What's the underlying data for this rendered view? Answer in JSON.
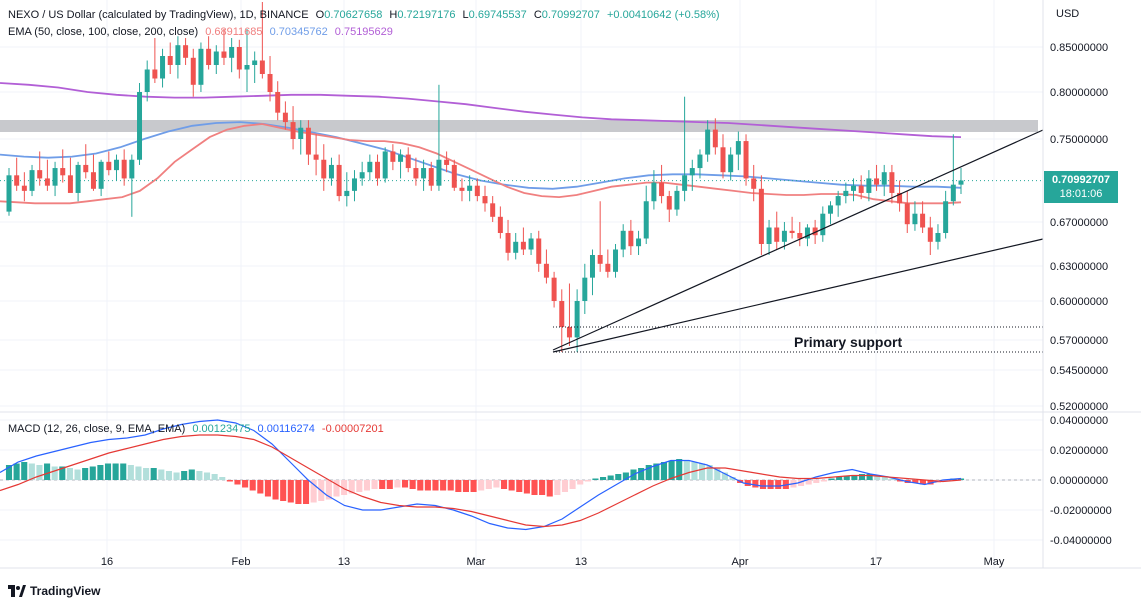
{
  "header": {
    "symbol": "NEXO / US Dollar (calculated by TradingView), 1D, BINANCE",
    "o_label": "O",
    "o_value": "0.70627658",
    "h_label": "H",
    "h_value": "0.72197176",
    "l_label": "L",
    "l_value": "0.69745537",
    "c_label": "C",
    "c_value": "0.70992707",
    "change": "+0.00410642 (+0.58%)",
    "ema_label": "EMA (50, close, 100, close, 200, close)",
    "ema50": "0.68911685",
    "ema100": "0.70345762",
    "ema200": "0.75195629",
    "macd_label": "MACD (12, 26, close, 9, EMA, EMA)",
    "macd_hist": "0.00123475",
    "macd_line": "0.00116274",
    "macd_signal": "-0.00007201"
  },
  "currency": "USD",
  "price_tag": {
    "price": "0.70992707",
    "countdown": "18:01:06"
  },
  "annotation": "Primary support",
  "brand": "TradingView",
  "colors": {
    "up": "#26a69a",
    "down": "#ef5350",
    "ema50": "#f08080",
    "ema100": "#6f9de8",
    "ema200": "#b25fd6",
    "macd": "#2962ff",
    "signal": "#e53935"
  },
  "chart_data": {
    "type": "candlestick",
    "title": "NEXO / US Dollar (calculated by TradingView), 1D, BINANCE",
    "price_ticks": [
      "0.85000000",
      "0.80000000",
      "0.75000000",
      "0.67000000",
      "0.63000000",
      "0.60000000",
      "0.57000000",
      "0.54500000",
      "0.52000000"
    ],
    "macd_ticks": [
      "0.04000000",
      "0.02000000",
      "0.00000000",
      "-0.02000000",
      "-0.04000000"
    ],
    "x_ticks": [
      "16",
      "Feb",
      "13",
      "Mar",
      "13",
      "Apr",
      "17",
      "May"
    ],
    "resistance_zone": [
      0.755,
      0.765
    ],
    "support_levels": [
      0.582,
      0.563
    ],
    "candles": [
      [
        0.68,
        0.722,
        0.676,
        0.715
      ],
      [
        0.715,
        0.732,
        0.7,
        0.705
      ],
      [
        0.705,
        0.718,
        0.69,
        0.7
      ],
      [
        0.7,
        0.725,
        0.695,
        0.72
      ],
      [
        0.72,
        0.738,
        0.705,
        0.712
      ],
      [
        0.712,
        0.73,
        0.7,
        0.705
      ],
      [
        0.705,
        0.728,
        0.695,
        0.722
      ],
      [
        0.722,
        0.74,
        0.708,
        0.715
      ],
      [
        0.715,
        0.732,
        0.7,
        0.698
      ],
      [
        0.698,
        0.728,
        0.69,
        0.725
      ],
      [
        0.725,
        0.745,
        0.712,
        0.718
      ],
      [
        0.718,
        0.735,
        0.7,
        0.702
      ],
      [
        0.702,
        0.73,
        0.695,
        0.728
      ],
      [
        0.728,
        0.738,
        0.715,
        0.72
      ],
      [
        0.72,
        0.735,
        0.71,
        0.73
      ],
      [
        0.73,
        0.74,
        0.705,
        0.712
      ],
      [
        0.712,
        0.735,
        0.675,
        0.73
      ],
      [
        0.73,
        0.81,
        0.725,
        0.8
      ],
      [
        0.8,
        0.835,
        0.79,
        0.825
      ],
      [
        0.825,
        0.86,
        0.81,
        0.815
      ],
      [
        0.815,
        0.848,
        0.805,
        0.84
      ],
      [
        0.84,
        0.855,
        0.82,
        0.83
      ],
      [
        0.83,
        0.862,
        0.815,
        0.852
      ],
      [
        0.852,
        0.86,
        0.83,
        0.838
      ],
      [
        0.838,
        0.848,
        0.795,
        0.808
      ],
      [
        0.808,
        0.855,
        0.8,
        0.848
      ],
      [
        0.848,
        0.862,
        0.825,
        0.83
      ],
      [
        0.83,
        0.852,
        0.82,
        0.845
      ],
      [
        0.845,
        0.87,
        0.83,
        0.838
      ],
      [
        0.838,
        0.86,
        0.822,
        0.85
      ],
      [
        0.85,
        0.858,
        0.815,
        0.825
      ],
      [
        0.825,
        0.87,
        0.8,
        0.83
      ],
      [
        0.83,
        0.845,
        0.81,
        0.835
      ],
      [
        0.835,
        0.9,
        0.815,
        0.82
      ],
      [
        0.82,
        0.84,
        0.79,
        0.8
      ],
      [
        0.8,
        0.812,
        0.77,
        0.778
      ],
      [
        0.778,
        0.79,
        0.76,
        0.768
      ],
      [
        0.768,
        0.785,
        0.74,
        0.75
      ],
      [
        0.75,
        0.77,
        0.735,
        0.762
      ],
      [
        0.762,
        0.77,
        0.725,
        0.735
      ],
      [
        0.735,
        0.755,
        0.715,
        0.73
      ],
      [
        0.73,
        0.745,
        0.7,
        0.712
      ],
      [
        0.712,
        0.732,
        0.705,
        0.725
      ],
      [
        0.725,
        0.735,
        0.69,
        0.695
      ],
      [
        0.695,
        0.718,
        0.685,
        0.7
      ],
      [
        0.7,
        0.72,
        0.69,
        0.712
      ],
      [
        0.712,
        0.728,
        0.705,
        0.718
      ],
      [
        0.718,
        0.735,
        0.71,
        0.728
      ],
      [
        0.728,
        0.735,
        0.705,
        0.712
      ],
      [
        0.712,
        0.742,
        0.708,
        0.738
      ],
      [
        0.738,
        0.745,
        0.72,
        0.728
      ],
      [
        0.728,
        0.74,
        0.712,
        0.735
      ],
      [
        0.735,
        0.742,
        0.718,
        0.722
      ],
      [
        0.722,
        0.732,
        0.705,
        0.712
      ],
      [
        0.712,
        0.73,
        0.7,
        0.722
      ],
      [
        0.722,
        0.728,
        0.7,
        0.705
      ],
      [
        0.705,
        0.808,
        0.7,
        0.73
      ],
      [
        0.73,
        0.738,
        0.718,
        0.725
      ],
      [
        0.725,
        0.73,
        0.7,
        0.703
      ],
      [
        0.703,
        0.712,
        0.69,
        0.7
      ],
      [
        0.7,
        0.715,
        0.69,
        0.705
      ],
      [
        0.705,
        0.712,
        0.69,
        0.695
      ],
      [
        0.695,
        0.705,
        0.68,
        0.688
      ],
      [
        0.688,
        0.695,
        0.67,
        0.675
      ],
      [
        0.675,
        0.685,
        0.655,
        0.66
      ],
      [
        0.66,
        0.672,
        0.635,
        0.642
      ],
      [
        0.642,
        0.66,
        0.636,
        0.652
      ],
      [
        0.652,
        0.665,
        0.64,
        0.645
      ],
      [
        0.645,
        0.66,
        0.64,
        0.655
      ],
      [
        0.655,
        0.662,
        0.625,
        0.632
      ],
      [
        0.632,
        0.645,
        0.615,
        0.62
      ],
      [
        0.62,
        0.625,
        0.595,
        0.6
      ],
      [
        0.6,
        0.61,
        0.56,
        0.58
      ],
      [
        0.58,
        0.615,
        0.565,
        0.572
      ],
      [
        0.572,
        0.61,
        0.56,
        0.6
      ],
      [
        0.6,
        0.632,
        0.59,
        0.62
      ],
      [
        0.62,
        0.645,
        0.605,
        0.64
      ],
      [
        0.64,
        0.69,
        0.625,
        0.632
      ],
      [
        0.632,
        0.645,
        0.62,
        0.625
      ],
      [
        0.625,
        0.65,
        0.62,
        0.645
      ],
      [
        0.645,
        0.668,
        0.638,
        0.662
      ],
      [
        0.662,
        0.672,
        0.64,
        0.648
      ],
      [
        0.648,
        0.662,
        0.64,
        0.655
      ],
      [
        0.655,
        0.705,
        0.65,
        0.69
      ],
      [
        0.69,
        0.72,
        0.682,
        0.708
      ],
      [
        0.708,
        0.725,
        0.688,
        0.695
      ],
      [
        0.695,
        0.7,
        0.67,
        0.682
      ],
      [
        0.682,
        0.705,
        0.676,
        0.7
      ],
      [
        0.7,
        0.795,
        0.69,
        0.715
      ],
      [
        0.715,
        0.73,
        0.7,
        0.722
      ],
      [
        0.722,
        0.74,
        0.712,
        0.735
      ],
      [
        0.735,
        0.77,
        0.728,
        0.76
      ],
      [
        0.76,
        0.772,
        0.735,
        0.742
      ],
      [
        0.742,
        0.755,
        0.712,
        0.718
      ],
      [
        0.718,
        0.742,
        0.71,
        0.735
      ],
      [
        0.735,
        0.758,
        0.72,
        0.748
      ],
      [
        0.748,
        0.755,
        0.705,
        0.712
      ],
      [
        0.712,
        0.725,
        0.69,
        0.702
      ],
      [
        0.702,
        0.715,
        0.64,
        0.65
      ],
      [
        0.65,
        0.672,
        0.64,
        0.665
      ],
      [
        0.665,
        0.68,
        0.645,
        0.652
      ],
      [
        0.652,
        0.67,
        0.645,
        0.662
      ],
      [
        0.662,
        0.675,
        0.655,
        0.66
      ],
      [
        0.66,
        0.67,
        0.648,
        0.655
      ],
      [
        0.655,
        0.668,
        0.648,
        0.665
      ],
      [
        0.665,
        0.672,
        0.65,
        0.658
      ],
      [
        0.658,
        0.685,
        0.652,
        0.678
      ],
      [
        0.678,
        0.69,
        0.668,
        0.686
      ],
      [
        0.686,
        0.7,
        0.675,
        0.695
      ],
      [
        0.695,
        0.708,
        0.688,
        0.7
      ],
      [
        0.7,
        0.712,
        0.69,
        0.705
      ],
      [
        0.705,
        0.715,
        0.692,
        0.698
      ],
      [
        0.698,
        0.72,
        0.69,
        0.712
      ],
      [
        0.712,
        0.725,
        0.7,
        0.706
      ],
      [
        0.706,
        0.725,
        0.695,
        0.718
      ],
      [
        0.718,
        0.725,
        0.688,
        0.698
      ],
      [
        0.698,
        0.71,
        0.68,
        0.688
      ],
      [
        0.688,
        0.7,
        0.66,
        0.668
      ],
      [
        0.668,
        0.69,
        0.662,
        0.678
      ],
      [
        0.678,
        0.69,
        0.66,
        0.665
      ],
      [
        0.665,
        0.675,
        0.64,
        0.652
      ],
      [
        0.652,
        0.668,
        0.645,
        0.66
      ],
      [
        0.66,
        0.7,
        0.655,
        0.69
      ],
      [
        0.69,
        0.755,
        0.686,
        0.706
      ],
      [
        0.706,
        0.722,
        0.697,
        0.71
      ]
    ],
    "ema50": [
      0.69,
      0.689,
      0.688,
      0.688,
      0.688,
      0.69,
      0.692,
      0.694,
      0.7,
      0.712,
      0.728,
      0.74,
      0.752,
      0.76,
      0.764,
      0.766,
      0.762,
      0.758,
      0.755,
      0.752,
      0.749,
      0.748,
      0.748,
      0.746,
      0.742,
      0.736,
      0.728,
      0.72,
      0.712,
      0.704,
      0.698,
      0.695,
      0.694,
      0.696,
      0.7,
      0.704,
      0.706,
      0.708,
      0.708,
      0.706,
      0.704,
      0.702,
      0.7,
      0.698,
      0.697,
      0.696,
      0.696,
      0.697,
      0.697,
      0.696,
      0.692,
      0.69,
      0.688,
      0.688,
      0.688,
      0.689
    ],
    "ema100": [
      0.735,
      0.733,
      0.732,
      0.733,
      0.736,
      0.742,
      0.75,
      0.758,
      0.764,
      0.767,
      0.768,
      0.766,
      0.762,
      0.757,
      0.752,
      0.746,
      0.74,
      0.732,
      0.724,
      0.716,
      0.71,
      0.706,
      0.703,
      0.702,
      0.704,
      0.708,
      0.712,
      0.715,
      0.716,
      0.716,
      0.715,
      0.714,
      0.712,
      0.71,
      0.708,
      0.706,
      0.705,
      0.705,
      0.704,
      0.704,
      0.703
    ],
    "ema200": [
      0.81,
      0.808,
      0.805,
      0.8,
      0.797,
      0.795,
      0.794,
      0.794,
      0.795,
      0.796,
      0.797,
      0.797,
      0.796,
      0.795,
      0.793,
      0.79,
      0.787,
      0.783,
      0.779,
      0.776,
      0.773,
      0.771,
      0.77,
      0.769,
      0.768,
      0.767,
      0.765,
      0.763,
      0.761,
      0.759,
      0.757,
      0.755,
      0.753,
      0.752
    ],
    "macd_hist": [
      0.01,
      0.011,
      0.012,
      0.011,
      0.01,
      0.011,
      0.009,
      0.009,
      0.008,
      0.007,
      0.008,
      0.009,
      0.01,
      0.011,
      0.011,
      0.011,
      0.01,
      0.009,
      0.008,
      0.008,
      0.007,
      0.006,
      0.005,
      0.006,
      0.007,
      0.006,
      0.005,
      0.004,
      0.002,
      -0.001,
      -0.003,
      -0.005,
      -0.007,
      -0.009,
      -0.011,
      -0.013,
      -0.014,
      -0.015,
      -0.016,
      -0.016,
      -0.015,
      -0.014,
      -0.013,
      -0.011,
      -0.01,
      -0.009,
      -0.008,
      -0.007,
      -0.006,
      -0.006,
      -0.006,
      -0.005,
      -0.005,
      -0.006,
      -0.007,
      -0.007,
      -0.007,
      -0.007,
      -0.007,
      -0.008,
      -0.008,
      -0.008,
      -0.007,
      -0.006,
      -0.005,
      -0.006,
      -0.007,
      -0.008,
      -0.009,
      -0.01,
      -0.01,
      -0.011,
      -0.01,
      -0.008,
      -0.006,
      -0.003,
      -0.001,
      0.001,
      0.002,
      0.003,
      0.004,
      0.005,
      0.007,
      0.008,
      0.01,
      0.011,
      0.012,
      0.013,
      0.014,
      0.013,
      0.012,
      0.011,
      0.01,
      0.008,
      0.005,
      0.002,
      -0.002,
      -0.004,
      -0.005,
      -0.006,
      -0.006,
      -0.006,
      -0.006,
      -0.005,
      -0.004,
      -0.003,
      -0.002,
      -0.001,
      0.001,
      0.002,
      0.003,
      0.003,
      0.004,
      0.004,
      0.003,
      0.002,
      0.001,
      -0.001,
      -0.002,
      -0.002,
      -0.003,
      -0.003,
      -0.002,
      -0.001,
      0.001,
      0.001
    ],
    "macd_line": [
      0.005,
      0.012,
      0.016,
      0.019,
      0.022,
      0.025,
      0.027,
      0.028,
      0.03,
      0.034,
      0.037,
      0.039,
      0.04,
      0.038,
      0.033,
      0.024,
      0.012,
      0.0,
      -0.01,
      -0.017,
      -0.02,
      -0.02,
      -0.018,
      -0.016,
      -0.017,
      -0.02,
      -0.024,
      -0.029,
      -0.032,
      -0.033,
      -0.031,
      -0.026,
      -0.018,
      -0.01,
      -0.003,
      0.004,
      0.009,
      0.013,
      0.013,
      0.01,
      0.004,
      -0.002,
      -0.004,
      -0.004,
      -0.002,
      0.002,
      0.005,
      0.007,
      0.004,
      0.002,
      -0.001,
      -0.003,
      0.0,
      0.001
    ],
    "macd_signal": [
      -0.007,
      -0.003,
      0.002,
      0.006,
      0.01,
      0.014,
      0.018,
      0.021,
      0.024,
      0.027,
      0.029,
      0.03,
      0.03,
      0.029,
      0.027,
      0.022,
      0.015,
      0.008,
      0.001,
      -0.006,
      -0.011,
      -0.015,
      -0.017,
      -0.018,
      -0.018,
      -0.019,
      -0.021,
      -0.024,
      -0.027,
      -0.03,
      -0.031,
      -0.03,
      -0.027,
      -0.022,
      -0.016,
      -0.01,
      -0.004,
      0.001,
      0.005,
      0.008,
      0.008,
      0.006,
      0.004,
      0.002,
      0.001,
      0.001,
      0.002,
      0.003,
      0.003,
      0.002,
      0.001,
      0.0,
      -0.001,
      0.0
    ]
  }
}
